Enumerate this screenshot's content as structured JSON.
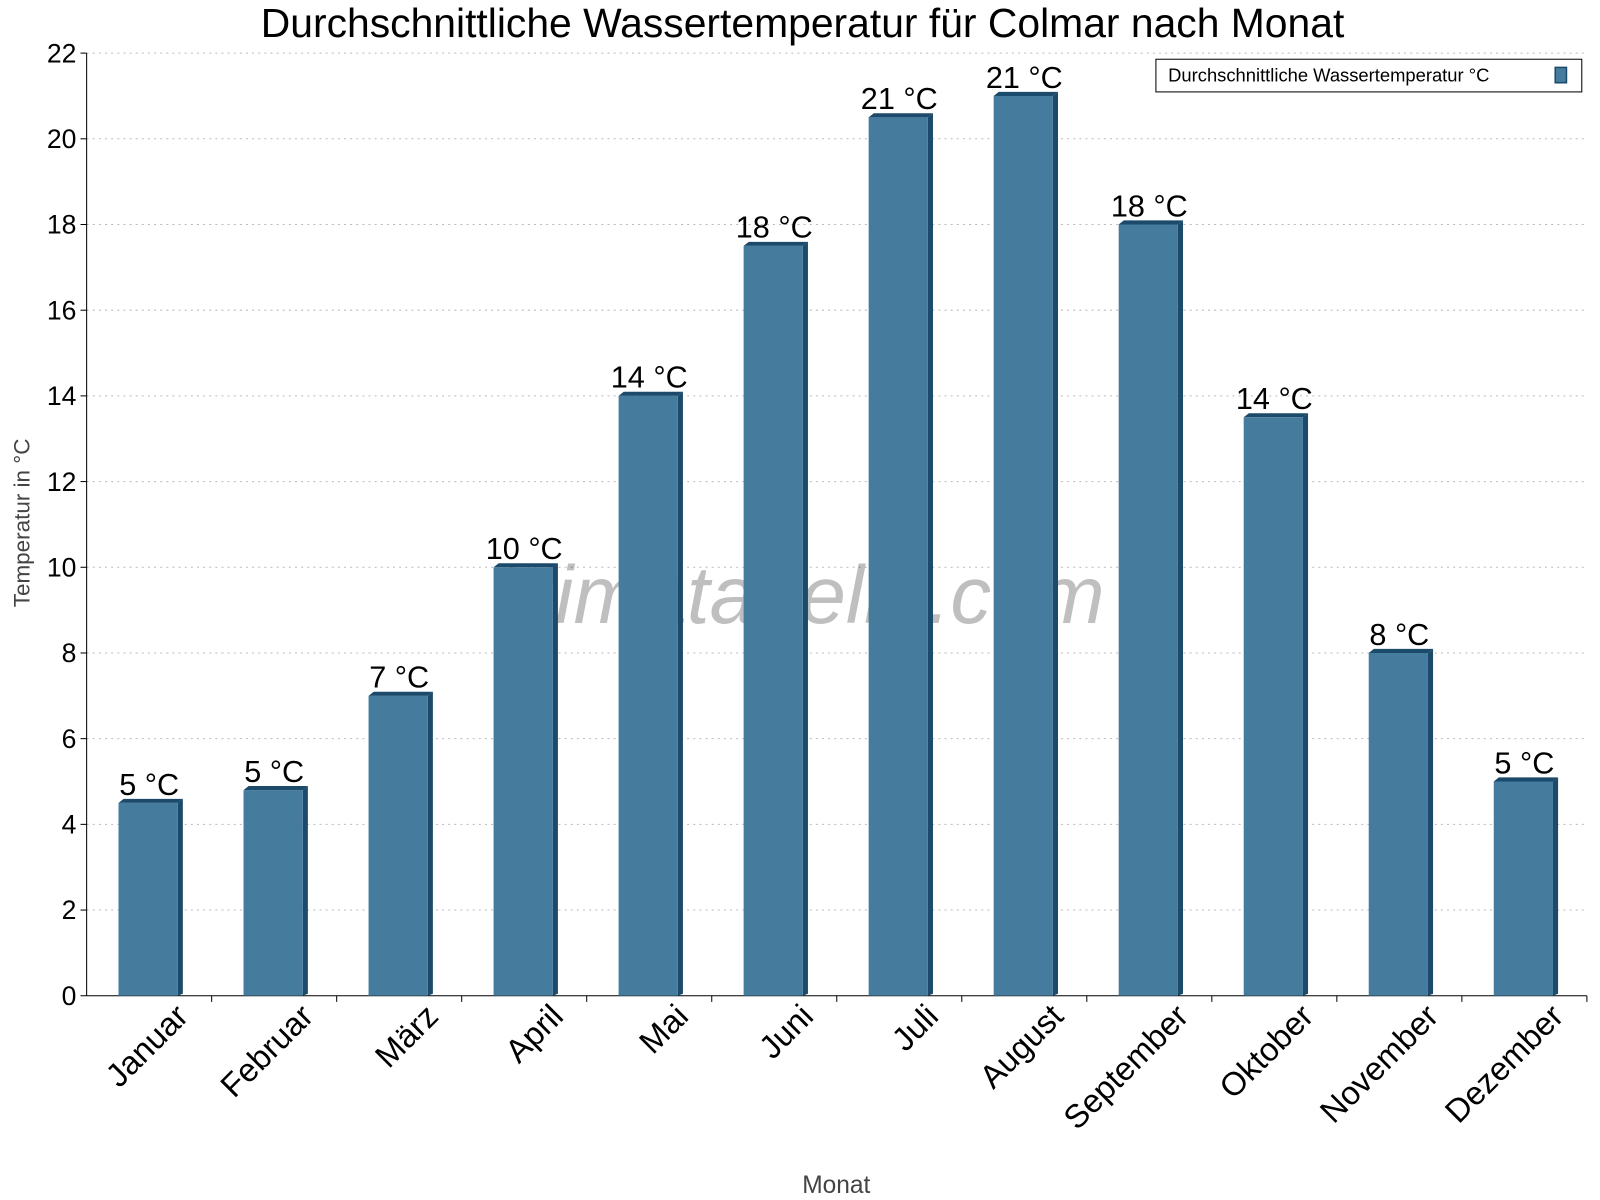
{
  "chart_data": {
    "type": "bar",
    "title": "Durchschnittliche Wassertemperatur für Colmar nach Monat",
    "xlabel": "Monat",
    "ylabel": "Temperatur in °C",
    "categories": [
      "Januar",
      "Februar",
      "März",
      "April",
      "Mai",
      "Juni",
      "Juli",
      "August",
      "September",
      "Oktober",
      "November",
      "Dezember"
    ],
    "series": [
      {
        "name": "Durchschnittliche Wassertemperatur °C",
        "values": [
          4.5,
          4.8,
          7,
          10,
          14,
          17.5,
          20.5,
          21,
          18,
          13.5,
          8,
          5
        ],
        "data_labels": [
          "5 °C",
          "5 °C",
          "7 °C",
          "10 °C",
          "14 °C",
          "18 °C",
          "21 °C",
          "21 °C",
          "18 °C",
          "14 °C",
          "8 °C",
          "5 °C"
        ],
        "color": "#457b9d"
      }
    ],
    "ylim": [
      0,
      22
    ],
    "yticks": [
      0,
      2,
      4,
      6,
      8,
      10,
      12,
      14,
      16,
      18,
      20,
      22
    ],
    "grid": true,
    "legend_position": "top-right",
    "watermark": "klimatabelle.com"
  }
}
